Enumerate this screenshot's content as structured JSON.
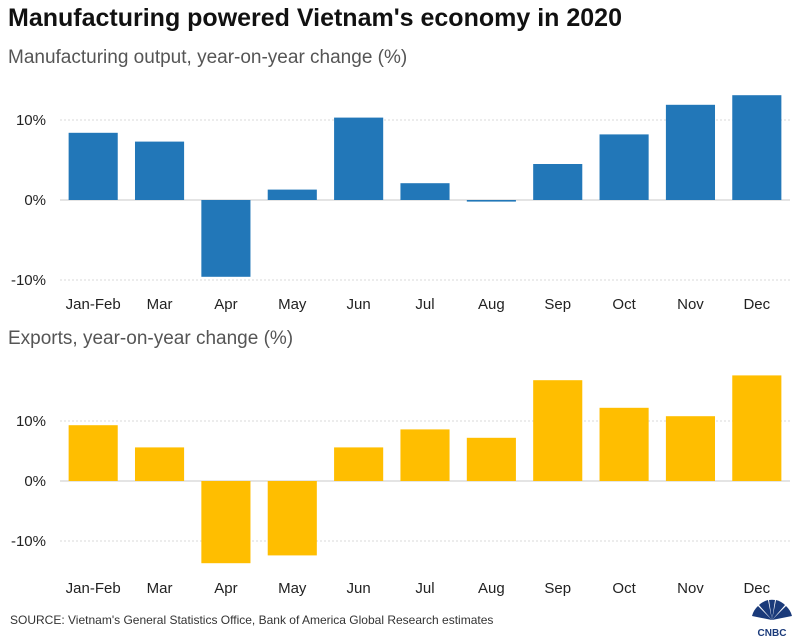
{
  "title": "Manufacturing powered Vietnam's economy in 2020",
  "source": "SOURCE: Vietnam's General Statistics Office, Bank of America Global Research estimates",
  "logo": "CNBC",
  "colors": {
    "manufacturing": "#2277b8",
    "exports": "#ffbe00",
    "grid": "#d9d9d9",
    "zero": "#c8c8c8"
  },
  "chart_data": [
    {
      "type": "bar",
      "title": "Manufacturing output, year-on-year change (%)",
      "categories": [
        "Jan-Feb",
        "Mar",
        "Apr",
        "May",
        "Jun",
        "Jul",
        "Aug",
        "Sep",
        "Oct",
        "Nov",
        "Dec"
      ],
      "values": [
        8.4,
        7.3,
        -9.6,
        1.3,
        10.3,
        2.1,
        -0.2,
        4.5,
        8.2,
        11.9,
        13.1
      ],
      "yticks": [
        -10,
        0,
        10
      ],
      "ytick_labels": [
        "-10%",
        "0%",
        "10%"
      ],
      "ylim": [
        -11,
        14
      ],
      "grid": true
    },
    {
      "type": "bar",
      "title": "Exports, year-on-year change (%)",
      "categories": [
        "Jan-Feb",
        "Mar",
        "Apr",
        "May",
        "Jun",
        "Jul",
        "Aug",
        "Sep",
        "Oct",
        "Nov",
        "Dec"
      ],
      "values": [
        9.3,
        5.6,
        -13.7,
        -12.4,
        5.6,
        8.6,
        7.2,
        16.8,
        12.2,
        10.8,
        17.6
      ],
      "yticks": [
        -10,
        0,
        10
      ],
      "ytick_labels": [
        "-10%",
        "0%",
        "10%"
      ],
      "ylim": [
        -16,
        19
      ],
      "grid": true
    }
  ]
}
